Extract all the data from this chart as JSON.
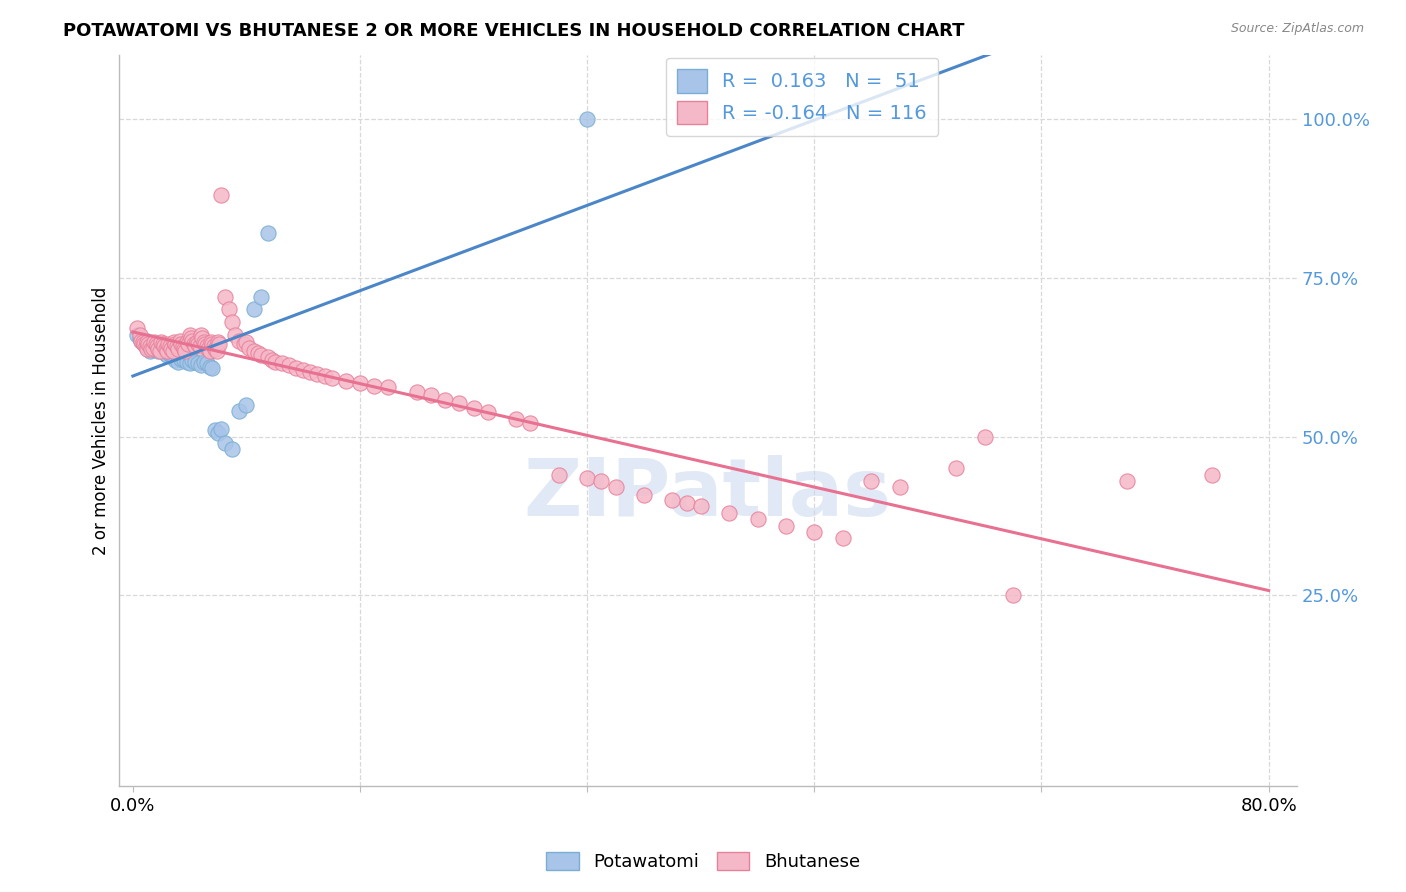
{
  "title": "POTAWATOMI VS BHUTANESE 2 OR MORE VEHICLES IN HOUSEHOLD CORRELATION CHART",
  "source": "Source: ZipAtlas.com",
  "ylabel": "2 or more Vehicles in Household",
  "potawatomi_color_fill": "#a8c4e8",
  "potawatomi_color_edge": "#7aaed4",
  "bhutanese_color_fill": "#f5b8c8",
  "bhutanese_color_edge": "#e8809a",
  "trend_blue": "#4a86c8",
  "trend_pink": "#e87090",
  "background_color": "#ffffff",
  "grid_color": "#d8d8d8",
  "watermark_color": "#c8d8ee",
  "right_tick_color": "#5599dd",
  "potawatomi_points": [
    [
      0.003,
      0.66
    ],
    [
      0.005,
      0.655
    ],
    [
      0.006,
      0.65
    ],
    [
      0.007,
      0.648
    ],
    [
      0.008,
      0.645
    ],
    [
      0.009,
      0.643
    ],
    [
      0.01,
      0.65
    ],
    [
      0.01,
      0.64
    ],
    [
      0.011,
      0.638
    ],
    [
      0.012,
      0.635
    ],
    [
      0.013,
      0.64
    ],
    [
      0.014,
      0.638
    ],
    [
      0.015,
      0.645
    ],
    [
      0.016,
      0.642
    ],
    [
      0.017,
      0.638
    ],
    [
      0.018,
      0.635
    ],
    [
      0.019,
      0.645
    ],
    [
      0.02,
      0.64
    ],
    [
      0.021,
      0.638
    ],
    [
      0.022,
      0.635
    ],
    [
      0.023,
      0.63
    ],
    [
      0.024,
      0.628
    ],
    [
      0.025,
      0.635
    ],
    [
      0.026,
      0.63
    ],
    [
      0.027,
      0.628
    ],
    [
      0.028,
      0.625
    ],
    [
      0.03,
      0.62
    ],
    [
      0.032,
      0.618
    ],
    [
      0.034,
      0.622
    ],
    [
      0.036,
      0.62
    ],
    [
      0.038,
      0.618
    ],
    [
      0.04,
      0.615
    ],
    [
      0.042,
      0.62
    ],
    [
      0.044,
      0.618
    ],
    [
      0.046,
      0.615
    ],
    [
      0.048,
      0.612
    ],
    [
      0.05,
      0.618
    ],
    [
      0.052,
      0.615
    ],
    [
      0.054,
      0.61
    ],
    [
      0.056,
      0.608
    ],
    [
      0.058,
      0.51
    ],
    [
      0.06,
      0.505
    ],
    [
      0.062,
      0.512
    ],
    [
      0.065,
      0.49
    ],
    [
      0.07,
      0.48
    ],
    [
      0.075,
      0.54
    ],
    [
      0.08,
      0.55
    ],
    [
      0.085,
      0.7
    ],
    [
      0.09,
      0.72
    ],
    [
      0.095,
      0.82
    ],
    [
      0.32,
      1.0
    ]
  ],
  "bhutanese_points": [
    [
      0.003,
      0.67
    ],
    [
      0.005,
      0.66
    ],
    [
      0.006,
      0.65
    ],
    [
      0.007,
      0.648
    ],
    [
      0.008,
      0.645
    ],
    [
      0.009,
      0.642
    ],
    [
      0.01,
      0.648
    ],
    [
      0.01,
      0.638
    ],
    [
      0.011,
      0.645
    ],
    [
      0.012,
      0.642
    ],
    [
      0.013,
      0.638
    ],
    [
      0.014,
      0.64
    ],
    [
      0.015,
      0.648
    ],
    [
      0.016,
      0.645
    ],
    [
      0.017,
      0.642
    ],
    [
      0.018,
      0.638
    ],
    [
      0.019,
      0.635
    ],
    [
      0.02,
      0.648
    ],
    [
      0.021,
      0.645
    ],
    [
      0.022,
      0.642
    ],
    [
      0.023,
      0.638
    ],
    [
      0.024,
      0.635
    ],
    [
      0.025,
      0.645
    ],
    [
      0.026,
      0.642
    ],
    [
      0.027,
      0.638
    ],
    [
      0.028,
      0.635
    ],
    [
      0.029,
      0.648
    ],
    [
      0.03,
      0.645
    ],
    [
      0.031,
      0.642
    ],
    [
      0.032,
      0.638
    ],
    [
      0.033,
      0.65
    ],
    [
      0.034,
      0.645
    ],
    [
      0.035,
      0.642
    ],
    [
      0.036,
      0.638
    ],
    [
      0.037,
      0.635
    ],
    [
      0.038,
      0.648
    ],
    [
      0.039,
      0.645
    ],
    [
      0.04,
      0.66
    ],
    [
      0.041,
      0.655
    ],
    [
      0.042,
      0.65
    ],
    [
      0.043,
      0.645
    ],
    [
      0.044,
      0.642
    ],
    [
      0.045,
      0.648
    ],
    [
      0.046,
      0.645
    ],
    [
      0.047,
      0.642
    ],
    [
      0.048,
      0.66
    ],
    [
      0.049,
      0.655
    ],
    [
      0.05,
      0.648
    ],
    [
      0.051,
      0.645
    ],
    [
      0.052,
      0.642
    ],
    [
      0.053,
      0.638
    ],
    [
      0.054,
      0.635
    ],
    [
      0.055,
      0.648
    ],
    [
      0.056,
      0.645
    ],
    [
      0.057,
      0.642
    ],
    [
      0.058,
      0.638
    ],
    [
      0.059,
      0.635
    ],
    [
      0.06,
      0.648
    ],
    [
      0.061,
      0.645
    ],
    [
      0.062,
      0.88
    ],
    [
      0.065,
      0.72
    ],
    [
      0.068,
      0.7
    ],
    [
      0.07,
      0.68
    ],
    [
      0.072,
      0.66
    ],
    [
      0.075,
      0.65
    ],
    [
      0.078,
      0.645
    ],
    [
      0.08,
      0.648
    ],
    [
      0.082,
      0.64
    ],
    [
      0.085,
      0.635
    ],
    [
      0.088,
      0.632
    ],
    [
      0.09,
      0.628
    ],
    [
      0.095,
      0.625
    ],
    [
      0.098,
      0.62
    ],
    [
      0.1,
      0.618
    ],
    [
      0.105,
      0.615
    ],
    [
      0.11,
      0.612
    ],
    [
      0.115,
      0.608
    ],
    [
      0.12,
      0.605
    ],
    [
      0.125,
      0.602
    ],
    [
      0.13,
      0.598
    ],
    [
      0.135,
      0.595
    ],
    [
      0.14,
      0.592
    ],
    [
      0.15,
      0.588
    ],
    [
      0.16,
      0.585
    ],
    [
      0.17,
      0.58
    ],
    [
      0.18,
      0.578
    ],
    [
      0.2,
      0.57
    ],
    [
      0.21,
      0.565
    ],
    [
      0.22,
      0.558
    ],
    [
      0.23,
      0.552
    ],
    [
      0.24,
      0.545
    ],
    [
      0.25,
      0.538
    ],
    [
      0.27,
      0.528
    ],
    [
      0.28,
      0.522
    ],
    [
      0.3,
      0.44
    ],
    [
      0.32,
      0.435
    ],
    [
      0.33,
      0.43
    ],
    [
      0.34,
      0.42
    ],
    [
      0.36,
      0.408
    ],
    [
      0.38,
      0.4
    ],
    [
      0.39,
      0.395
    ],
    [
      0.4,
      0.39
    ],
    [
      0.42,
      0.38
    ],
    [
      0.44,
      0.37
    ],
    [
      0.46,
      0.36
    ],
    [
      0.48,
      0.35
    ],
    [
      0.5,
      0.34
    ],
    [
      0.52,
      0.43
    ],
    [
      0.54,
      0.42
    ],
    [
      0.58,
      0.45
    ],
    [
      0.6,
      0.5
    ],
    [
      0.62,
      0.25
    ],
    [
      0.7,
      0.43
    ],
    [
      0.76,
      0.44
    ]
  ]
}
